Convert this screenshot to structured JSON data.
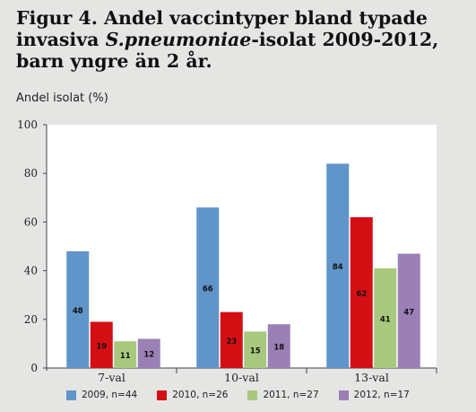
{
  "header": {
    "title_line1": "Figur 4. Andel vaccintyper bland typade",
    "title_line2_pre": "invasiva ",
    "title_line2_italic": "S.pneumoniae",
    "title_line2_post": "-isolat 2009-2012,",
    "title_line3": "barn yngre än 2 år."
  },
  "chart_data": {
    "type": "bar",
    "ylabel": "Andel isolat (%)",
    "ylim": [
      0,
      100
    ],
    "yticks": [
      0,
      20,
      40,
      60,
      80,
      100
    ],
    "grid": false,
    "legend_position": "bottom",
    "categories": [
      "7-val",
      "10-val",
      "13-val"
    ],
    "series": [
      {
        "name": "2009, n=44",
        "color": "#6095c9",
        "values": [
          48,
          66,
          84
        ]
      },
      {
        "name": "2010, n=26",
        "color": "#d40f14",
        "values": [
          19,
          23,
          62
        ]
      },
      {
        "name": "2011, n=27",
        "color": "#a8c97d",
        "values": [
          11,
          15,
          41
        ]
      },
      {
        "name": "2012, n=17",
        "color": "#9b80b5",
        "values": [
          12,
          18,
          47
        ]
      }
    ]
  }
}
